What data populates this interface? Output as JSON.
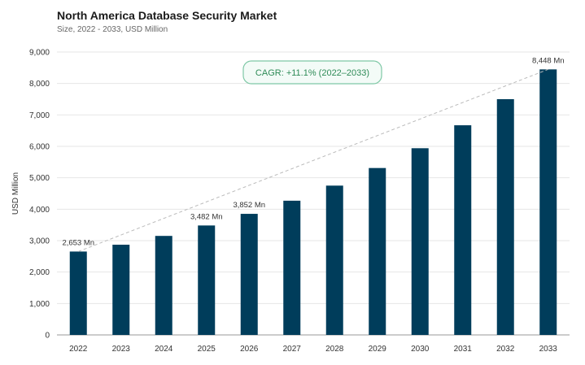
{
  "title": "North America Database Security Market",
  "subtitle": "Size, 2022 - 2033, USD Million",
  "colors": {
    "bar": "#003d5b",
    "trend": "#bbbbbb",
    "cagr_text": "#2e8b57",
    "cagr_border": "#7fc8a6",
    "cagr_fill": "#f3fbf7"
  },
  "chart_data": {
    "type": "bar",
    "categories": [
      "2022",
      "2023",
      "2024",
      "2025",
      "2026",
      "2027",
      "2028",
      "2029",
      "2030",
      "2031",
      "2032",
      "2033"
    ],
    "values": [
      2653,
      2870,
      3150,
      3482,
      3852,
      4270,
      4750,
      5310,
      5940,
      6670,
      7500,
      8448
    ],
    "ylabel": "USD Million",
    "xlabel": "",
    "ylim": [
      0,
      9000
    ],
    "yticks": [
      "0",
      "1,000",
      "2,000",
      "3,000",
      "4,000",
      "5,000",
      "6,000",
      "7,000",
      "8,000",
      "9,000"
    ],
    "grid": true,
    "data_labels": [
      {
        "category": "2022",
        "text": "2,653 Mn"
      },
      {
        "category": "2025",
        "text": "3,482 Mn"
      },
      {
        "category": "2026",
        "text": "3,852 Mn"
      },
      {
        "category": "2033",
        "text": "8,448 Mn"
      }
    ],
    "trendline": {
      "from": "2022",
      "to": "2033",
      "style": "dashed"
    },
    "annotation": "CAGR: +11.1% (2022–2033)"
  }
}
